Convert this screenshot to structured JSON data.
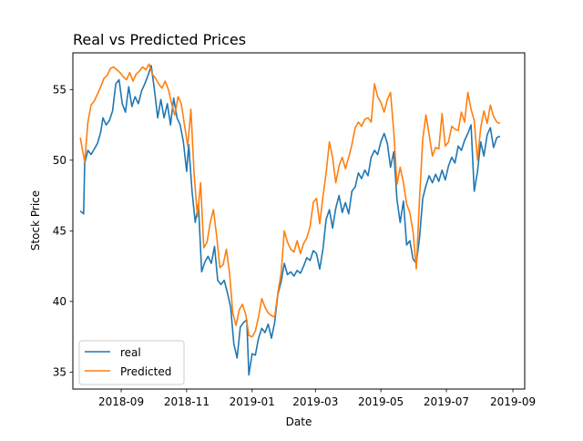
{
  "chart_data": {
    "type": "line",
    "title": "Real vs Predicted Prices",
    "xlabel": "Date",
    "ylabel": "Stock Price",
    "xlim": [
      "2018-07-18",
      "2019-09-12"
    ],
    "ylim": [
      33.8,
      57.6
    ],
    "x_ticks": [
      {
        "date": "2018-09-01",
        "label": "2018-09"
      },
      {
        "date": "2018-11-01",
        "label": "2018-11"
      },
      {
        "date": "2019-01-01",
        "label": "2019-01"
      },
      {
        "date": "2019-03-01",
        "label": "2019-03"
      },
      {
        "date": "2019-05-01",
        "label": "2019-05"
      },
      {
        "date": "2019-07-01",
        "label": "2019-07"
      },
      {
        "date": "2019-09-01",
        "label": "2019-09"
      }
    ],
    "y_ticks": [
      35,
      40,
      45,
      50,
      55
    ],
    "legend_position": "lower-left",
    "series": [
      {
        "name": "real",
        "color": "#1f77b4",
        "points": [
          [
            "2018-07-25",
            46.4
          ],
          [
            "2018-07-28",
            46.2
          ],
          [
            "2018-07-29",
            49.8
          ],
          [
            "2018-08-01",
            50.7
          ],
          [
            "2018-08-04",
            50.4
          ],
          [
            "2018-08-07",
            50.8
          ],
          [
            "2018-08-10",
            51.2
          ],
          [
            "2018-08-13",
            52.0
          ],
          [
            "2018-08-15",
            53.0
          ],
          [
            "2018-08-18",
            52.5
          ],
          [
            "2018-08-21",
            52.8
          ],
          [
            "2018-08-24",
            53.5
          ],
          [
            "2018-08-27",
            55.4
          ],
          [
            "2018-08-30",
            55.7
          ],
          [
            "2018-09-02",
            54.0
          ],
          [
            "2018-09-05",
            53.4
          ],
          [
            "2018-09-08",
            55.2
          ],
          [
            "2018-09-11",
            53.8
          ],
          [
            "2018-09-14",
            54.5
          ],
          [
            "2018-09-17",
            54.0
          ],
          [
            "2018-09-20",
            54.9
          ],
          [
            "2018-09-23",
            55.4
          ],
          [
            "2018-09-26",
            56.0
          ],
          [
            "2018-09-29",
            56.7
          ],
          [
            "2018-10-02",
            55.0
          ],
          [
            "2018-10-05",
            53.0
          ],
          [
            "2018-10-08",
            54.3
          ],
          [
            "2018-10-11",
            53.0
          ],
          [
            "2018-10-14",
            54.0
          ],
          [
            "2018-10-17",
            52.5
          ],
          [
            "2018-10-20",
            54.4
          ],
          [
            "2018-10-23",
            53.0
          ],
          [
            "2018-10-26",
            52.5
          ],
          [
            "2018-10-29",
            51.3
          ],
          [
            "2018-11-01",
            49.2
          ],
          [
            "2018-11-03",
            51.1
          ],
          [
            "2018-11-06",
            47.8
          ],
          [
            "2018-11-09",
            45.6
          ],
          [
            "2018-11-12",
            46.9
          ],
          [
            "2018-11-15",
            42.1
          ],
          [
            "2018-11-18",
            42.8
          ],
          [
            "2018-11-21",
            43.2
          ],
          [
            "2018-11-24",
            42.7
          ],
          [
            "2018-11-27",
            43.9
          ],
          [
            "2018-11-30",
            41.5
          ],
          [
            "2018-12-03",
            41.2
          ],
          [
            "2018-12-06",
            41.5
          ],
          [
            "2018-12-09",
            40.6
          ],
          [
            "2018-12-12",
            39.6
          ],
          [
            "2018-12-15",
            37.0
          ],
          [
            "2018-12-18",
            36.0
          ],
          [
            "2018-12-21",
            38.2
          ],
          [
            "2018-12-24",
            38.5
          ],
          [
            "2018-12-27",
            38.7
          ],
          [
            "2018-12-29",
            34.8
          ],
          [
            "2019-01-01",
            36.3
          ],
          [
            "2019-01-04",
            36.2
          ],
          [
            "2019-01-07",
            37.4
          ],
          [
            "2019-01-10",
            38.1
          ],
          [
            "2019-01-13",
            37.8
          ],
          [
            "2019-01-16",
            38.4
          ],
          [
            "2019-01-19",
            37.4
          ],
          [
            "2019-01-22",
            38.5
          ],
          [
            "2019-01-25",
            40.5
          ],
          [
            "2019-01-28",
            41.4
          ],
          [
            "2019-01-31",
            42.7
          ],
          [
            "2019-02-03",
            41.9
          ],
          [
            "2019-02-06",
            42.1
          ],
          [
            "2019-02-09",
            41.8
          ],
          [
            "2019-02-12",
            42.2
          ],
          [
            "2019-02-15",
            42.0
          ],
          [
            "2019-02-18",
            42.5
          ],
          [
            "2019-02-21",
            43.1
          ],
          [
            "2019-02-24",
            42.9
          ],
          [
            "2019-02-27",
            43.6
          ],
          [
            "2019-03-02",
            43.4
          ],
          [
            "2019-03-05",
            42.3
          ],
          [
            "2019-03-08",
            43.7
          ],
          [
            "2019-03-11",
            45.8
          ],
          [
            "2019-03-14",
            46.5
          ],
          [
            "2019-03-17",
            45.2
          ],
          [
            "2019-03-20",
            46.6
          ],
          [
            "2019-03-23",
            47.5
          ],
          [
            "2019-03-26",
            46.3
          ],
          [
            "2019-03-29",
            47.0
          ],
          [
            "2019-04-01",
            46.2
          ],
          [
            "2019-04-04",
            47.8
          ],
          [
            "2019-04-07",
            48.1
          ],
          [
            "2019-04-10",
            49.1
          ],
          [
            "2019-04-13",
            48.7
          ],
          [
            "2019-04-16",
            49.3
          ],
          [
            "2019-04-19",
            48.9
          ],
          [
            "2019-04-22",
            50.2
          ],
          [
            "2019-04-25",
            50.7
          ],
          [
            "2019-04-28",
            50.4
          ],
          [
            "2019-05-01",
            51.3
          ],
          [
            "2019-05-04",
            51.9
          ],
          [
            "2019-05-07",
            51.2
          ],
          [
            "2019-05-10",
            49.5
          ],
          [
            "2019-05-13",
            50.6
          ],
          [
            "2019-05-16",
            47.2
          ],
          [
            "2019-05-19",
            45.6
          ],
          [
            "2019-05-22",
            47.1
          ],
          [
            "2019-05-25",
            44.0
          ],
          [
            "2019-05-28",
            44.3
          ],
          [
            "2019-05-31",
            43.0
          ],
          [
            "2019-06-03",
            42.7
          ],
          [
            "2019-06-06",
            44.5
          ],
          [
            "2019-06-09",
            47.3
          ],
          [
            "2019-06-12",
            48.2
          ],
          [
            "2019-06-15",
            48.9
          ],
          [
            "2019-06-18",
            48.4
          ],
          [
            "2019-06-21",
            49.0
          ],
          [
            "2019-06-24",
            48.5
          ],
          [
            "2019-06-27",
            49.3
          ],
          [
            "2019-06-30",
            48.6
          ],
          [
            "2019-07-03",
            49.6
          ],
          [
            "2019-07-06",
            50.2
          ],
          [
            "2019-07-09",
            49.8
          ],
          [
            "2019-07-12",
            51.0
          ],
          [
            "2019-07-15",
            50.7
          ],
          [
            "2019-07-18",
            51.4
          ],
          [
            "2019-07-21",
            51.9
          ],
          [
            "2019-07-24",
            52.5
          ],
          [
            "2019-07-27",
            47.8
          ],
          [
            "2019-07-30",
            49.2
          ],
          [
            "2019-08-02",
            51.3
          ],
          [
            "2019-08-05",
            50.3
          ],
          [
            "2019-08-08",
            51.8
          ],
          [
            "2019-08-11",
            52.3
          ],
          [
            "2019-08-14",
            50.9
          ],
          [
            "2019-08-17",
            51.6
          ],
          [
            "2019-08-20",
            51.7
          ]
        ]
      },
      {
        "name": "Predicted",
        "color": "#ff7f0e",
        "points": [
          [
            "2018-07-25",
            51.6
          ],
          [
            "2018-07-27",
            50.7
          ],
          [
            "2018-07-29",
            49.9
          ],
          [
            "2018-08-01",
            52.7
          ],
          [
            "2018-08-04",
            53.9
          ],
          [
            "2018-08-07",
            54.2
          ],
          [
            "2018-08-10",
            54.7
          ],
          [
            "2018-08-13",
            55.2
          ],
          [
            "2018-08-16",
            55.8
          ],
          [
            "2018-08-19",
            56.0
          ],
          [
            "2018-08-22",
            56.5
          ],
          [
            "2018-08-25",
            56.6
          ],
          [
            "2018-08-28",
            56.4
          ],
          [
            "2018-08-31",
            56.2
          ],
          [
            "2018-09-03",
            55.9
          ],
          [
            "2018-09-06",
            55.7
          ],
          [
            "2018-09-09",
            56.2
          ],
          [
            "2018-09-12",
            55.6
          ],
          [
            "2018-09-15",
            56.1
          ],
          [
            "2018-09-18",
            56.3
          ],
          [
            "2018-09-21",
            56.6
          ],
          [
            "2018-09-24",
            56.4
          ],
          [
            "2018-09-27",
            56.8
          ],
          [
            "2018-09-30",
            56.1
          ],
          [
            "2018-10-03",
            55.8
          ],
          [
            "2018-10-06",
            55.4
          ],
          [
            "2018-10-09",
            55.1
          ],
          [
            "2018-10-12",
            55.6
          ],
          [
            "2018-10-15",
            55.0
          ],
          [
            "2018-10-18",
            54.0
          ],
          [
            "2018-10-21",
            53.2
          ],
          [
            "2018-10-24",
            54.5
          ],
          [
            "2018-10-27",
            54.0
          ],
          [
            "2018-10-30",
            52.5
          ],
          [
            "2018-11-02",
            51.0
          ],
          [
            "2018-11-05",
            53.6
          ],
          [
            "2018-11-08",
            49.0
          ],
          [
            "2018-11-11",
            46.0
          ],
          [
            "2018-11-14",
            48.4
          ],
          [
            "2018-11-17",
            43.8
          ],
          [
            "2018-11-20",
            44.2
          ],
          [
            "2018-11-23",
            45.6
          ],
          [
            "2018-11-26",
            46.5
          ],
          [
            "2018-11-29",
            44.6
          ],
          [
            "2018-12-02",
            42.4
          ],
          [
            "2018-12-05",
            42.6
          ],
          [
            "2018-12-08",
            43.7
          ],
          [
            "2018-12-11",
            42.0
          ],
          [
            "2018-12-14",
            39.2
          ],
          [
            "2018-12-17",
            38.3
          ],
          [
            "2018-12-20",
            39.4
          ],
          [
            "2018-12-23",
            39.8
          ],
          [
            "2018-12-26",
            39.1
          ],
          [
            "2018-12-29",
            37.6
          ],
          [
            "2019-01-01",
            37.5
          ],
          [
            "2019-01-04",
            37.9
          ],
          [
            "2019-01-07",
            38.9
          ],
          [
            "2019-01-10",
            40.2
          ],
          [
            "2019-01-13",
            39.6
          ],
          [
            "2019-01-16",
            39.2
          ],
          [
            "2019-01-19",
            39.0
          ],
          [
            "2019-01-22",
            38.9
          ],
          [
            "2019-01-25",
            40.6
          ],
          [
            "2019-01-28",
            42.0
          ],
          [
            "2019-01-31",
            45.0
          ],
          [
            "2019-02-03",
            44.2
          ],
          [
            "2019-02-06",
            43.7
          ],
          [
            "2019-02-09",
            43.5
          ],
          [
            "2019-02-12",
            44.3
          ],
          [
            "2019-02-15",
            43.4
          ],
          [
            "2019-02-18",
            44.1
          ],
          [
            "2019-02-21",
            44.5
          ],
          [
            "2019-02-24",
            45.3
          ],
          [
            "2019-02-27",
            47.0
          ],
          [
            "2019-03-02",
            47.3
          ],
          [
            "2019-03-05",
            45.5
          ],
          [
            "2019-03-08",
            47.4
          ],
          [
            "2019-03-11",
            49.1
          ],
          [
            "2019-03-14",
            51.3
          ],
          [
            "2019-03-17",
            50.2
          ],
          [
            "2019-03-20",
            48.4
          ],
          [
            "2019-03-23",
            49.6
          ],
          [
            "2019-03-26",
            50.2
          ],
          [
            "2019-03-29",
            49.4
          ],
          [
            "2019-04-01",
            50.2
          ],
          [
            "2019-04-04",
            51.1
          ],
          [
            "2019-04-07",
            52.3
          ],
          [
            "2019-04-10",
            52.7
          ],
          [
            "2019-04-13",
            52.4
          ],
          [
            "2019-04-16",
            52.9
          ],
          [
            "2019-04-19",
            53.0
          ],
          [
            "2019-04-22",
            52.7
          ],
          [
            "2019-04-25",
            55.4
          ],
          [
            "2019-04-28",
            54.5
          ],
          [
            "2019-05-01",
            54.1
          ],
          [
            "2019-05-04",
            53.4
          ],
          [
            "2019-05-07",
            54.3
          ],
          [
            "2019-05-10",
            54.8
          ],
          [
            "2019-05-13",
            52.0
          ],
          [
            "2019-05-16",
            48.3
          ],
          [
            "2019-05-19",
            49.5
          ],
          [
            "2019-05-22",
            48.4
          ],
          [
            "2019-05-25",
            46.9
          ],
          [
            "2019-05-28",
            46.3
          ],
          [
            "2019-05-31",
            44.9
          ],
          [
            "2019-06-03",
            42.3
          ],
          [
            "2019-06-06",
            47.2
          ],
          [
            "2019-06-09",
            51.5
          ],
          [
            "2019-06-12",
            53.2
          ],
          [
            "2019-06-15",
            51.8
          ],
          [
            "2019-06-18",
            50.3
          ],
          [
            "2019-06-21",
            50.9
          ],
          [
            "2019-06-24",
            50.8
          ],
          [
            "2019-06-27",
            53.3
          ],
          [
            "2019-06-30",
            51.0
          ],
          [
            "2019-07-03",
            51.3
          ],
          [
            "2019-07-06",
            52.4
          ],
          [
            "2019-07-09",
            52.2
          ],
          [
            "2019-07-12",
            52.1
          ],
          [
            "2019-07-15",
            53.4
          ],
          [
            "2019-07-18",
            52.7
          ],
          [
            "2019-07-21",
            54.8
          ],
          [
            "2019-07-24",
            53.6
          ],
          [
            "2019-07-27",
            52.8
          ],
          [
            "2019-07-30",
            50.0
          ],
          [
            "2019-08-02",
            52.3
          ],
          [
            "2019-08-05",
            53.5
          ],
          [
            "2019-08-08",
            52.6
          ],
          [
            "2019-08-11",
            53.9
          ],
          [
            "2019-08-14",
            53.1
          ],
          [
            "2019-08-17",
            52.7
          ],
          [
            "2019-08-20",
            52.6
          ]
        ]
      }
    ]
  }
}
